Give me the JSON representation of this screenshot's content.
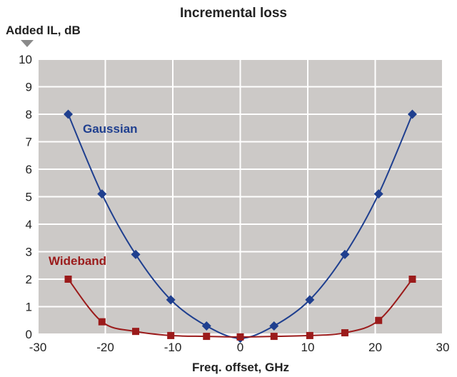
{
  "chart_data": {
    "type": "line",
    "title": "Incremental loss",
    "ylabel": "Added IL, dB",
    "xlabel": "Freq. offset, GHz",
    "xlim": [
      -30,
      30
    ],
    "ylim": [
      0,
      10
    ],
    "xticks": [
      -30,
      -20,
      -10,
      0,
      10,
      20,
      30
    ],
    "yticks": [
      0,
      1,
      2,
      3,
      4,
      5,
      6,
      7,
      8,
      9,
      10
    ],
    "grid": true,
    "background_color": "#ccc9c7",
    "grid_color": "#ffffff",
    "series": [
      {
        "name": "Gaussian",
        "color": "#1f3f8f",
        "marker": "diamond",
        "x": [
          -25.5,
          -20.5,
          -15.5,
          -10.3,
          -5,
          0,
          5,
          10.3,
          15.5,
          20.5,
          25.5
        ],
        "y": [
          8.0,
          5.1,
          2.9,
          1.25,
          0.3,
          -0.15,
          0.3,
          1.25,
          2.9,
          5.1,
          8.0
        ]
      },
      {
        "name": "Wideband",
        "color": "#9b1b1b",
        "marker": "square",
        "x": [
          -25.5,
          -20.5,
          -15.5,
          -10.3,
          -5,
          0,
          5,
          10.3,
          15.5,
          20.5,
          25.5
        ],
        "y": [
          2.0,
          0.45,
          0.1,
          -0.05,
          -0.08,
          -0.1,
          -0.08,
          -0.05,
          0.05,
          0.5,
          2.0
        ]
      }
    ]
  }
}
